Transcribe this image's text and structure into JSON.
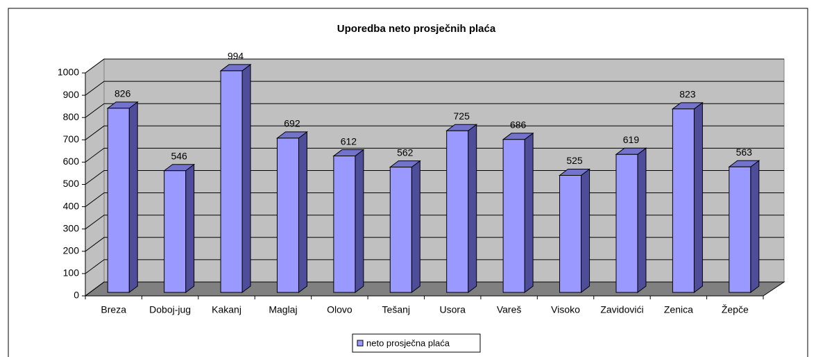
{
  "chart_data": {
    "type": "bar",
    "title": "Uporedba neto prosječnih plaća",
    "categories": [
      "Breza",
      "Doboj-jug",
      "Kakanj",
      "Maglaj",
      "Olovo",
      "Tešanj",
      "Usora",
      "Vareš",
      "Visoko",
      "Zavidovići",
      "Zenica",
      "Žepče"
    ],
    "series": [
      {
        "name": "neto prosječna plaća",
        "color": "#9999ff",
        "values": [
          826,
          546,
          994,
          692,
          612,
          562,
          725,
          686,
          525,
          619,
          823,
          563
        ]
      }
    ],
    "ylim": [
      0,
      1000
    ],
    "yticks": [
      0,
      100,
      200,
      300,
      400,
      500,
      600,
      700,
      800,
      900,
      1000
    ],
    "grid": true,
    "legend": "bottom"
  }
}
